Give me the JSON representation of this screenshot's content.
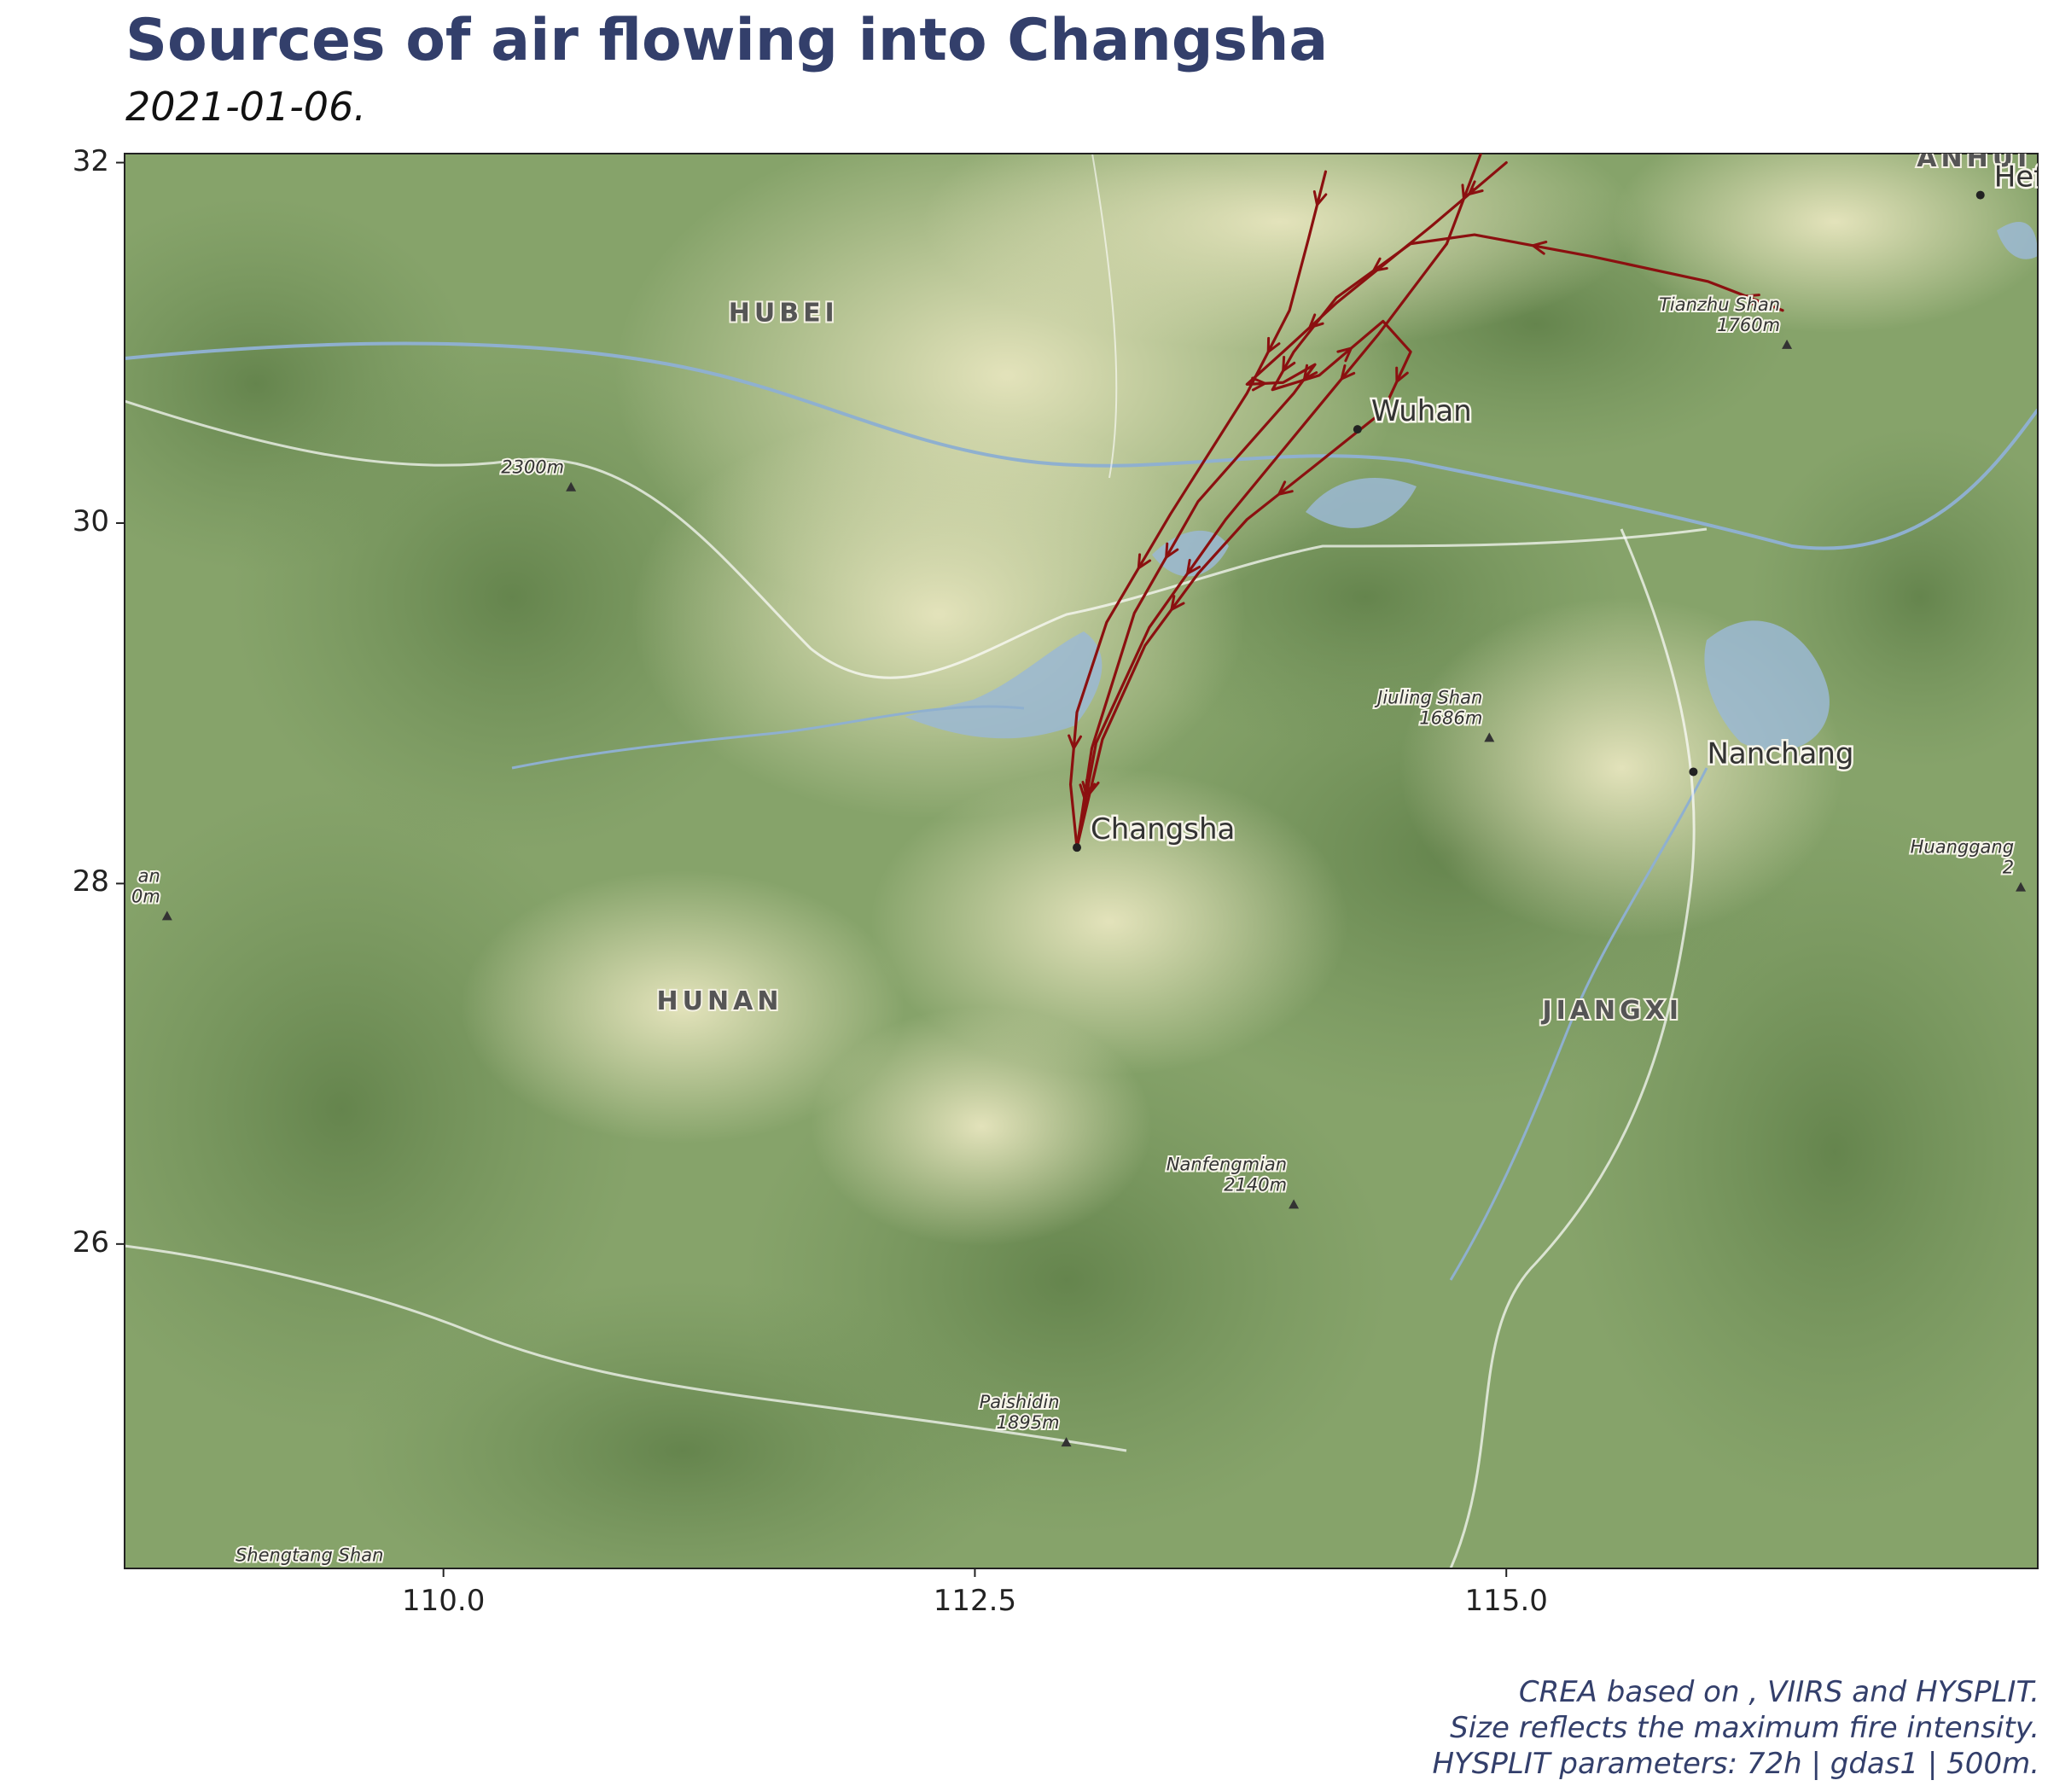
{
  "title": "Sources of air flowing into Changsha",
  "subtitle": "2021-01-06.",
  "caption": [
    "CREA based on , VIIRS and HYSPLIT.",
    "Size reflects the maximum fire intensity.",
    "HYSPLIT parameters: 72h | gdas1 | 500m."
  ],
  "map": {
    "xlim": [
      108.5,
      117.5
    ],
    "ylim": [
      24.2,
      32.05
    ],
    "x_ticks": [
      {
        "value": 110.0,
        "label": "110.0"
      },
      {
        "value": 112.5,
        "label": "112.5"
      },
      {
        "value": 115.0,
        "label": "115.0"
      }
    ],
    "y_ticks": [
      {
        "value": 26,
        "label": "26"
      },
      {
        "value": 28,
        "label": "28"
      },
      {
        "value": 30,
        "label": "30"
      },
      {
        "value": 32,
        "label": "32"
      }
    ],
    "colors": {
      "trajectory": "#8b1010",
      "lowland": "#e6e5bd",
      "forest": "#6f8f58",
      "water": "#9bb8d4",
      "border": "#ffffff"
    },
    "regions": [
      {
        "name": "HUBEI",
        "lon": 111.6,
        "lat": 31.12
      },
      {
        "name": "HUNAN",
        "lon": 111.3,
        "lat": 27.3
      },
      {
        "name": "JIANGXI",
        "lon": 115.5,
        "lat": 27.25
      },
      {
        "name": "ANHUI",
        "lon": 117.2,
        "lat": 31.98
      }
    ],
    "cities": [
      {
        "name": "Changsha",
        "lon": 112.98,
        "lat": 28.2
      },
      {
        "name": "Wuhan",
        "lon": 114.3,
        "lat": 30.52
      },
      {
        "name": "Nanchang",
        "lon": 115.88,
        "lat": 28.62
      },
      {
        "name": "Hefei",
        "lon": 117.23,
        "lat": 31.82
      }
    ],
    "peaks": [
      {
        "name": "Tianzhu Shan",
        "elev": "1760m",
        "lon": 116.32,
        "lat": 30.99
      },
      {
        "name": "Jiuling Shan",
        "elev": "1686m",
        "lon": 114.92,
        "lat": 28.81
      },
      {
        "name": "Nanfengmian",
        "elev": "2140m",
        "lon": 114.0,
        "lat": 26.22
      },
      {
        "name": "Paishidin",
        "elev": "1895m",
        "lon": 112.93,
        "lat": 24.9
      },
      {
        "name": "Shengtang Shan",
        "elev": "",
        "lon": 109.75,
        "lat": 24.05
      },
      {
        "name": "Huanggang",
        "elev": "2",
        "lon": 117.42,
        "lat": 27.98
      },
      {
        "name": "an",
        "elev": "0m",
        "lon": 108.7,
        "lat": 27.82
      },
      {
        "name": "",
        "elev": "2300m",
        "lon": 110.6,
        "lat": 30.2
      }
    ],
    "trajectories": [
      {
        "points": [
          [
            114.15,
            31.95
          ],
          [
            114.07,
            31.58
          ],
          [
            113.98,
            31.18
          ],
          [
            113.78,
            30.72
          ],
          [
            113.42,
            30.05
          ],
          [
            113.12,
            29.45
          ],
          [
            112.98,
            28.95
          ],
          [
            112.95,
            28.55
          ],
          [
            112.98,
            28.2
          ]
        ]
      },
      {
        "points": [
          [
            114.88,
            32.05
          ],
          [
            114.72,
            31.55
          ],
          [
            114.4,
            31.05
          ],
          [
            114.05,
            30.55
          ],
          [
            113.68,
            30.02
          ],
          [
            113.32,
            29.42
          ],
          [
            113.07,
            28.78
          ],
          [
            112.98,
            28.2
          ]
        ]
      },
      {
        "points": [
          [
            115.0,
            32.0
          ],
          [
            114.65,
            31.65
          ],
          [
            114.2,
            31.22
          ],
          [
            113.95,
            30.95
          ],
          [
            113.78,
            30.77
          ],
          [
            113.95,
            30.78
          ],
          [
            114.1,
            30.88
          ],
          [
            114.0,
            30.72
          ],
          [
            113.55,
            30.12
          ],
          [
            113.25,
            29.5
          ],
          [
            113.05,
            28.75
          ],
          [
            112.98,
            28.2
          ]
        ]
      },
      {
        "points": [
          [
            116.3,
            31.18
          ],
          [
            115.95,
            31.34
          ],
          [
            115.4,
            31.48
          ],
          [
            114.85,
            31.6
          ],
          [
            114.55,
            31.55
          ],
          [
            114.2,
            31.25
          ],
          [
            114.0,
            30.95
          ],
          [
            113.9,
            30.74
          ],
          [
            114.12,
            30.82
          ],
          [
            114.42,
            31.12
          ],
          [
            114.55,
            30.95
          ],
          [
            114.42,
            30.62
          ],
          [
            114.08,
            30.3
          ],
          [
            113.78,
            30.02
          ],
          [
            113.55,
            29.72
          ],
          [
            113.3,
            29.32
          ],
          [
            113.1,
            28.8
          ],
          [
            112.98,
            28.2
          ]
        ]
      }
    ]
  }
}
